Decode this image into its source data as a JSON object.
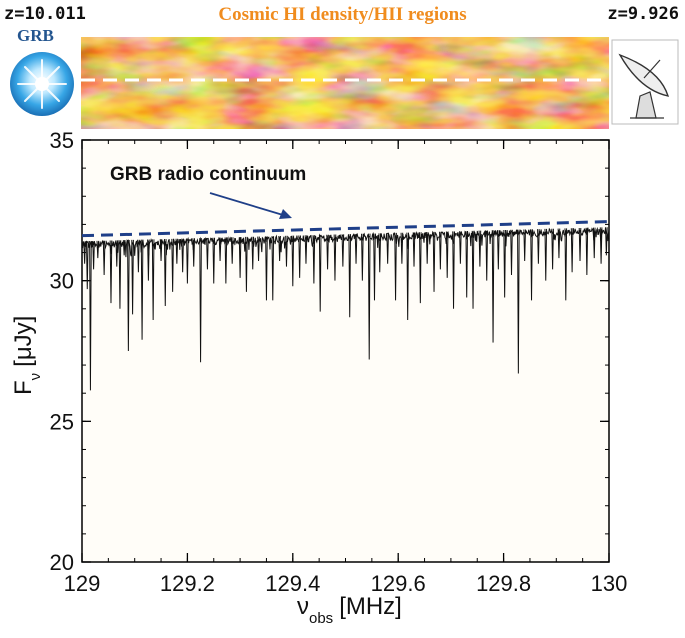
{
  "header": {
    "z_start": "z=10.011",
    "z_end": "z=9.926",
    "title": "Cosmic HI density/HII regions",
    "grb_label": "GRB"
  },
  "icons": {
    "source": "grb-star-icon",
    "observer": "radio-telescope-icon"
  },
  "colors": {
    "title": "#f08c1e",
    "grb_label": "#23558f",
    "continuum": "#1f3f88",
    "spectrum": "#111111",
    "density_map": [
      "#4a0d00",
      "#b3410c",
      "#e8871d",
      "#fcd98a"
    ]
  },
  "chart_data": {
    "type": "line",
    "xlabel_main": "ν",
    "xlabel_sub": "obs",
    "xlabel_unit": "[MHz]",
    "ylabel_main": "F",
    "ylabel_sub": "ν",
    "ylabel_unit": "[μJy]",
    "xlim": [
      129,
      130
    ],
    "ylim": [
      20,
      35
    ],
    "xticks": [
      129,
      129.2,
      129.4,
      129.6,
      129.8,
      130
    ],
    "xtick_labels": [
      "129",
      "129.2",
      "129.4",
      "129.6",
      "129.8",
      "130"
    ],
    "yticks": [
      20,
      25,
      30,
      35
    ],
    "ytick_labels": [
      "20",
      "25",
      "30",
      "35"
    ],
    "annotation": "GRB radio continuum",
    "continuum": {
      "x": [
        129,
        130
      ],
      "y": [
        31.6,
        32.1
      ]
    },
    "spectrum_baseline": {
      "x": [
        129,
        130
      ],
      "y": [
        31.4,
        31.9
      ]
    },
    "absorption_lines": [
      {
        "x": 129.005,
        "y": 30.6
      },
      {
        "x": 129.01,
        "y": 29.7
      },
      {
        "x": 129.016,
        "y": 26.1
      },
      {
        "x": 129.022,
        "y": 30.4
      },
      {
        "x": 129.03,
        "y": 30.8
      },
      {
        "x": 129.042,
        "y": 30.2
      },
      {
        "x": 129.055,
        "y": 29.2
      },
      {
        "x": 129.066,
        "y": 30.5
      },
      {
        "x": 129.072,
        "y": 29.0
      },
      {
        "x": 129.08,
        "y": 30.9
      },
      {
        "x": 129.088,
        "y": 27.5
      },
      {
        "x": 129.096,
        "y": 28.8
      },
      {
        "x": 129.107,
        "y": 30.3
      },
      {
        "x": 129.114,
        "y": 27.9
      },
      {
        "x": 129.126,
        "y": 30.0
      },
      {
        "x": 129.135,
        "y": 28.6
      },
      {
        "x": 129.15,
        "y": 30.7
      },
      {
        "x": 129.158,
        "y": 29.1
      },
      {
        "x": 129.172,
        "y": 29.6
      },
      {
        "x": 129.18,
        "y": 30.6
      },
      {
        "x": 129.191,
        "y": 30.3
      },
      {
        "x": 129.2,
        "y": 29.9
      },
      {
        "x": 129.212,
        "y": 30.5
      },
      {
        "x": 129.225,
        "y": 27.1
      },
      {
        "x": 129.238,
        "y": 30.4
      },
      {
        "x": 129.25,
        "y": 29.9
      },
      {
        "x": 129.262,
        "y": 30.7
      },
      {
        "x": 129.273,
        "y": 29.9
      },
      {
        "x": 129.285,
        "y": 30.6
      },
      {
        "x": 129.3,
        "y": 30.1
      },
      {
        "x": 129.312,
        "y": 29.6
      },
      {
        "x": 129.324,
        "y": 30.4
      },
      {
        "x": 129.335,
        "y": 30.7
      },
      {
        "x": 129.35,
        "y": 29.3
      },
      {
        "x": 129.362,
        "y": 29.3
      },
      {
        "x": 129.375,
        "y": 30.7
      },
      {
        "x": 129.388,
        "y": 30.5
      },
      {
        "x": 129.4,
        "y": 29.8
      },
      {
        "x": 129.413,
        "y": 30.1
      },
      {
        "x": 129.425,
        "y": 30.6
      },
      {
        "x": 129.44,
        "y": 29.9
      },
      {
        "x": 129.452,
        "y": 28.9
      },
      {
        "x": 129.466,
        "y": 30.4
      },
      {
        "x": 129.48,
        "y": 30.0
      },
      {
        "x": 129.495,
        "y": 30.5
      },
      {
        "x": 129.508,
        "y": 28.7
      },
      {
        "x": 129.52,
        "y": 30.6
      },
      {
        "x": 129.532,
        "y": 30.0
      },
      {
        "x": 129.545,
        "y": 27.2
      },
      {
        "x": 129.555,
        "y": 29.3
      },
      {
        "x": 129.565,
        "y": 30.3
      },
      {
        "x": 129.58,
        "y": 30.6
      },
      {
        "x": 129.595,
        "y": 29.3
      },
      {
        "x": 129.607,
        "y": 30.6
      },
      {
        "x": 129.618,
        "y": 28.6
      },
      {
        "x": 129.63,
        "y": 30.5
      },
      {
        "x": 129.642,
        "y": 29.2
      },
      {
        "x": 129.655,
        "y": 30.6
      },
      {
        "x": 129.668,
        "y": 29.6
      },
      {
        "x": 129.68,
        "y": 30.4
      },
      {
        "x": 129.693,
        "y": 30.1
      },
      {
        "x": 129.705,
        "y": 29.0
      },
      {
        "x": 129.718,
        "y": 30.6
      },
      {
        "x": 129.73,
        "y": 29.4
      },
      {
        "x": 129.742,
        "y": 29.0
      },
      {
        "x": 129.755,
        "y": 30.5
      },
      {
        "x": 129.768,
        "y": 30.0
      },
      {
        "x": 129.78,
        "y": 27.8
      },
      {
        "x": 129.79,
        "y": 30.4
      },
      {
        "x": 129.802,
        "y": 29.4
      },
      {
        "x": 129.815,
        "y": 30.2
      },
      {
        "x": 129.828,
        "y": 26.7
      },
      {
        "x": 129.84,
        "y": 30.7
      },
      {
        "x": 129.853,
        "y": 29.3
      },
      {
        "x": 129.866,
        "y": 30.6
      },
      {
        "x": 129.88,
        "y": 30.0
      },
      {
        "x": 129.893,
        "y": 30.4
      },
      {
        "x": 129.905,
        "y": 30.8
      },
      {
        "x": 129.918,
        "y": 29.3
      },
      {
        "x": 129.93,
        "y": 30.3
      },
      {
        "x": 129.945,
        "y": 30.7
      },
      {
        "x": 129.958,
        "y": 30.2
      },
      {
        "x": 129.972,
        "y": 30.8
      },
      {
        "x": 129.985,
        "y": 30.6
      },
      {
        "x": 129.995,
        "y": 30.9
      }
    ]
  }
}
